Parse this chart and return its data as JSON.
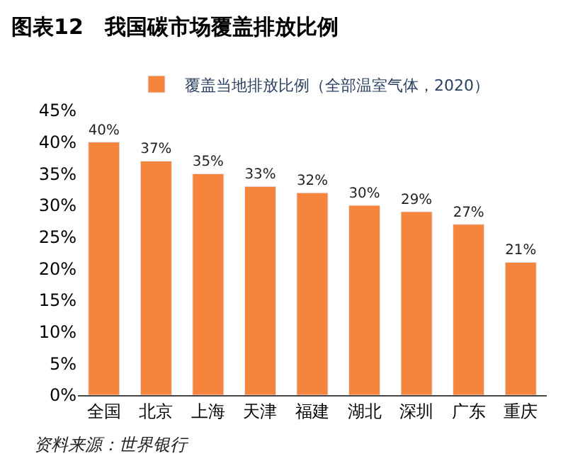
{
  "chart_data": {
    "type": "bar",
    "title": "图表12　我国碳市场覆盖排放比例",
    "categories": [
      "全国",
      "北京",
      "上海",
      "天津",
      "福建",
      "湖北",
      "深圳",
      "广东",
      "重庆"
    ],
    "series": [
      {
        "name": "覆盖当地排放比例（全部温室气体，2020）",
        "color": "#f5843c",
        "values": [
          40,
          37,
          35,
          33,
          32,
          30,
          29,
          27,
          21
        ],
        "value_labels": [
          "40%",
          "37%",
          "35%",
          "33%",
          "32%",
          "30%",
          "29%",
          "27%",
          "21%"
        ]
      }
    ],
    "ylim": [
      0,
      45
    ],
    "yticks": [
      {
        "value": 0,
        "label": "0%"
      },
      {
        "value": 5,
        "label": "5%"
      },
      {
        "value": 10,
        "label": "10%"
      },
      {
        "value": 15,
        "label": "15%"
      },
      {
        "value": 20,
        "label": "20%"
      },
      {
        "value": 25,
        "label": "25%"
      },
      {
        "value": 30,
        "label": "30%"
      },
      {
        "value": 35,
        "label": "35%"
      },
      {
        "value": 40,
        "label": "40%"
      },
      {
        "value": 45,
        "label": "45%"
      }
    ],
    "legend": "top",
    "annotations": [
      "资料来源：世界银行"
    ]
  }
}
